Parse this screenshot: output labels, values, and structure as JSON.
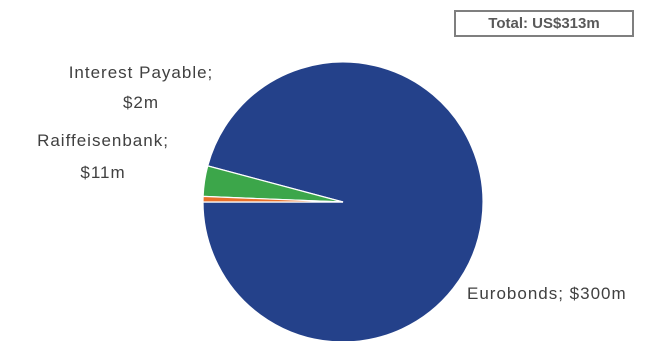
{
  "total_label": "Total: US$313m",
  "chart_data": {
    "type": "pie",
    "categories": [
      "Eurobonds",
      "Raiffeisenbank",
      "Interest Payable"
    ],
    "values": [
      300,
      11,
      2
    ],
    "unit": "US$m",
    "labels": [
      {
        "category": "Eurobonds",
        "value_text": "$300m",
        "lines": [
          "Eurobonds; $300m"
        ]
      },
      {
        "category": "Raiffeisenbank",
        "value_text": "$11m",
        "lines": [
          "Raiffeisenbank;",
          "$11m"
        ]
      },
      {
        "category": "Interest Payable",
        "value_text": "$2m",
        "lines": [
          "Interest Payable;",
          "$2m"
        ]
      }
    ],
    "colors": [
      "#24418a",
      "#3ca64a",
      "#e8702a"
    ],
    "start_angle_deg": 180,
    "direction": "counterclockwise",
    "legend": "none"
  }
}
